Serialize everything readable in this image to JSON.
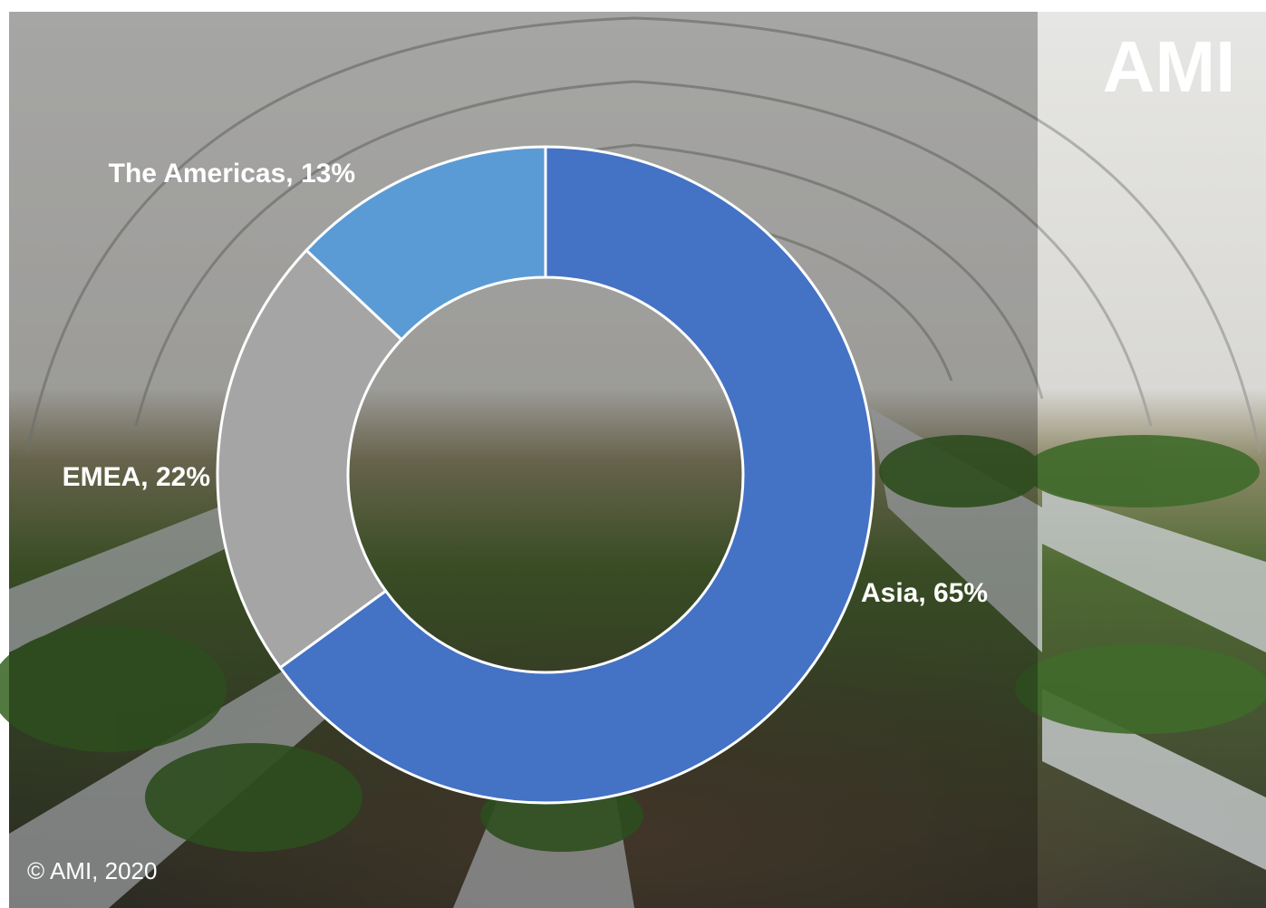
{
  "chart_data": {
    "type": "pie",
    "donut": true,
    "values": [
      65,
      22,
      13
    ],
    "value_labels": [
      "Asia, 65%",
      "EMEA, 22%",
      "The Americas, 13%"
    ],
    "colors": [
      "#4472c4",
      "#a5a5a5",
      "#5b9bd5"
    ]
  },
  "logo": "AMI",
  "copyright": "© AMI, 2020"
}
